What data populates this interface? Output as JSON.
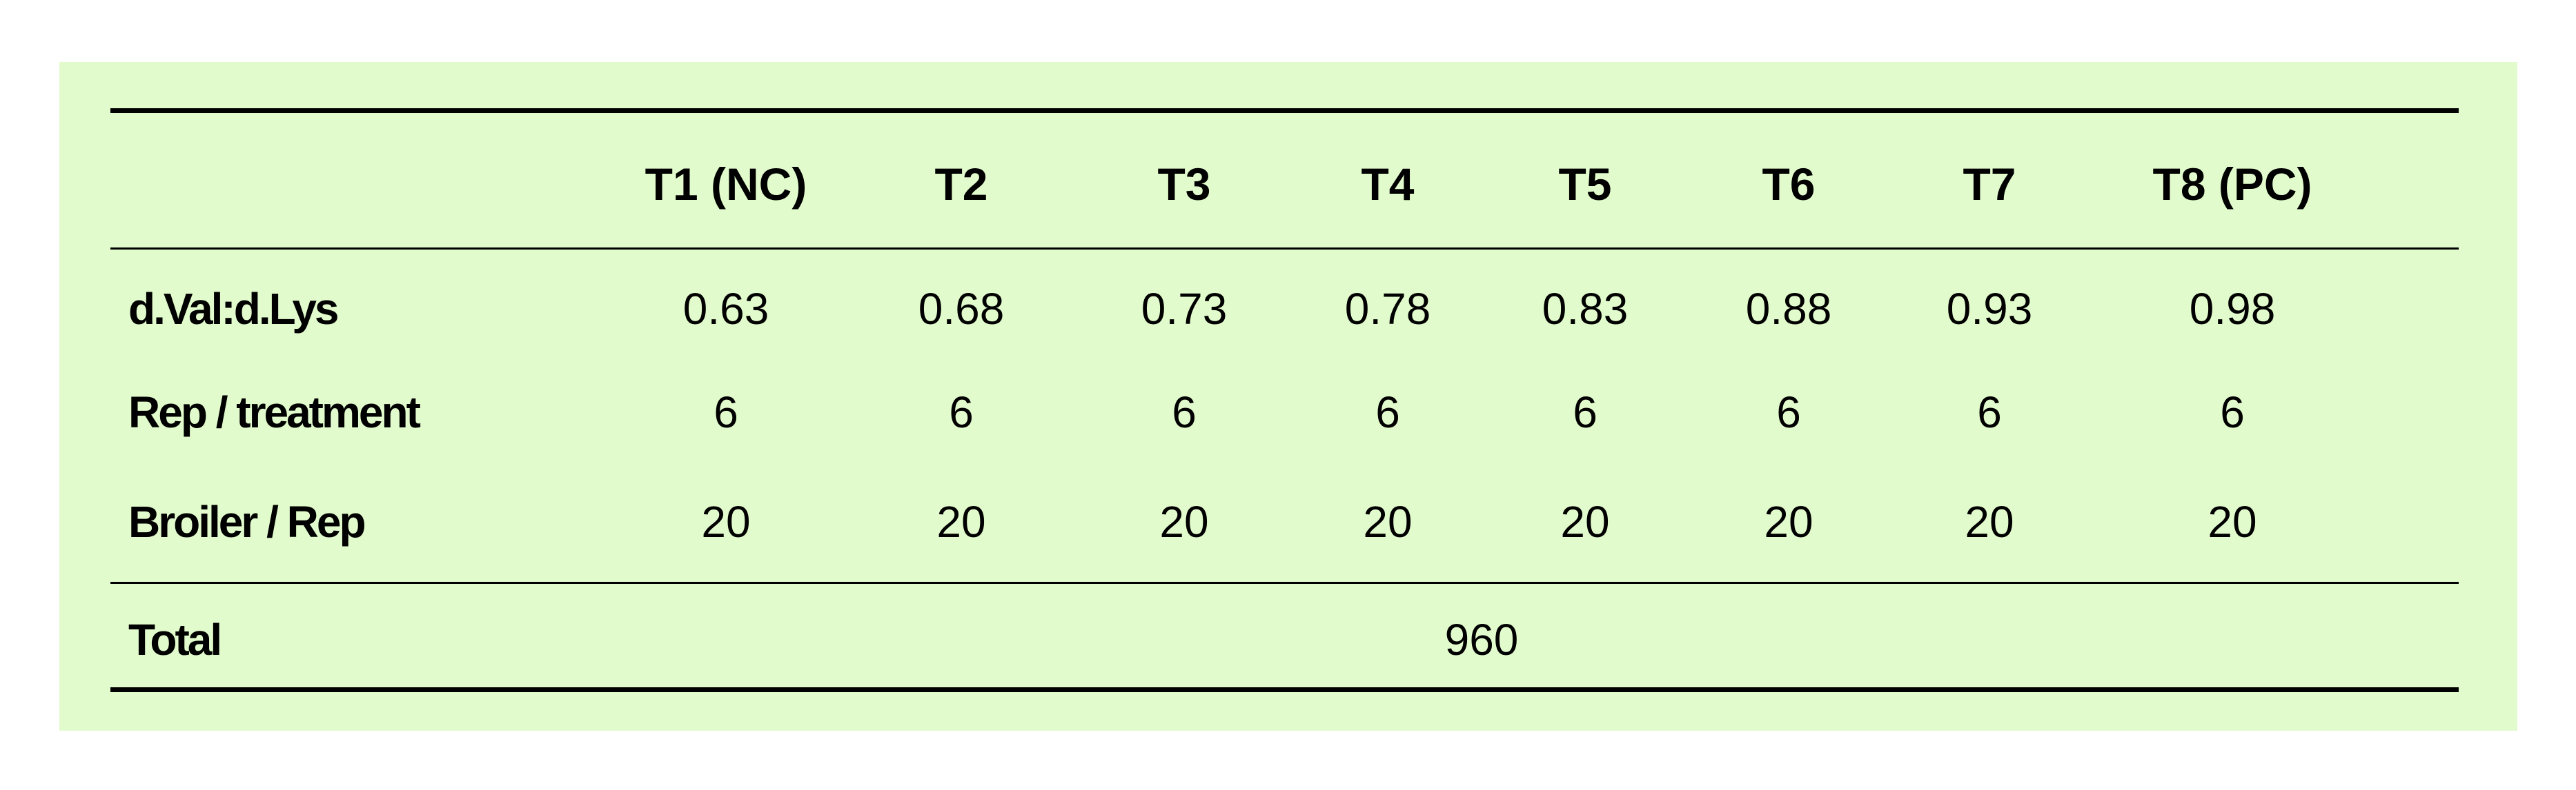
{
  "background_color": "#e2fbcc",
  "table": {
    "columns": [
      "T1 (NC)",
      "T2",
      "T3",
      "T4",
      "T5",
      "T6",
      "T7",
      "T8 (PC)"
    ],
    "rows": [
      {
        "label": "d.Val:d.Lys",
        "values": [
          "0.63",
          "0.68",
          "0.73",
          "0.78",
          "0.83",
          "0.88",
          "0.93",
          "0.98"
        ]
      },
      {
        "label": "Rep / treatment",
        "values": [
          "6",
          "6",
          "6",
          "6",
          "6",
          "6",
          "6",
          "6"
        ]
      },
      {
        "label": "Broiler / Rep",
        "values": [
          "20",
          "20",
          "20",
          "20",
          "20",
          "20",
          "20",
          "20"
        ]
      }
    ],
    "total": {
      "label": "Total",
      "value": "960"
    }
  }
}
